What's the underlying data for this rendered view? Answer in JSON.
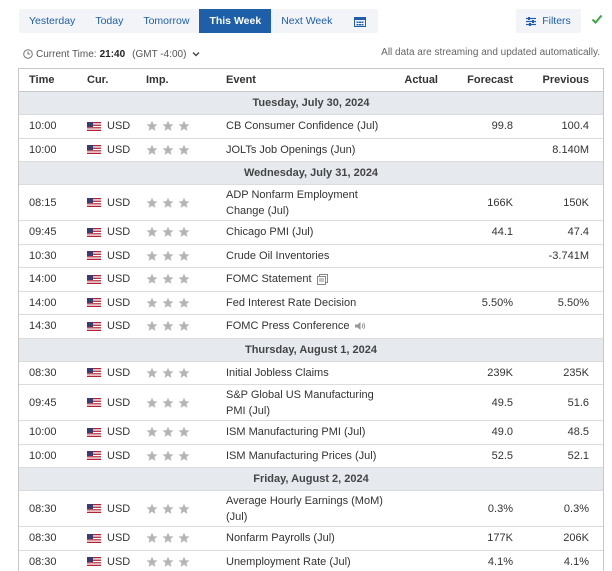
{
  "tabs": [
    {
      "label": "Yesterday",
      "active": false
    },
    {
      "label": "Today",
      "active": false
    },
    {
      "label": "Tomorrow",
      "active": false
    },
    {
      "label": "This Week",
      "active": true
    },
    {
      "label": "Next Week",
      "active": false
    }
  ],
  "calendar_icon": "calendar-icon",
  "filters": {
    "label": "Filters",
    "icon": "filters-icon"
  },
  "check_icon": "checkmark-icon",
  "time_info": {
    "label": "Current Time:",
    "time": "21:40",
    "timezone": "(GMT -4:00)",
    "dropdown_icon": "chevron-down-icon"
  },
  "streaming_note": "All data are streaming and updated automatically.",
  "columns": {
    "time": "Time",
    "currency": "Cur.",
    "importance": "Imp.",
    "event": "Event",
    "actual": "Actual",
    "forecast": "Forecast",
    "previous": "Previous"
  },
  "colors": {
    "accent": "#1f5fa9",
    "day_header_bg": "#e6eaef",
    "star_gray": "#b5b5b5",
    "check_green": "#3aa845"
  },
  "days": [
    {
      "date": "Tuesday, July 30, 2024",
      "events": [
        {
          "time": "10:00",
          "currency": "USD",
          "importance": 3,
          "event": "CB Consumer Confidence (Jul)",
          "actual": "",
          "forecast": "99.8",
          "previous": "100.4"
        },
        {
          "time": "10:00",
          "currency": "USD",
          "importance": 3,
          "event": "JOLTs Job Openings (Jun)",
          "actual": "",
          "forecast": "",
          "previous": "8.140M"
        }
      ]
    },
    {
      "date": "Wednesday, July 31, 2024",
      "events": [
        {
          "time": "08:15",
          "currency": "USD",
          "importance": 3,
          "event": "ADP Nonfarm Employment Change (Jul)",
          "actual": "",
          "forecast": "166K",
          "previous": "150K"
        },
        {
          "time": "09:45",
          "currency": "USD",
          "importance": 3,
          "event": "Chicago PMI (Jul)",
          "actual": "",
          "forecast": "44.1",
          "previous": "47.4"
        },
        {
          "time": "10:30",
          "currency": "USD",
          "importance": 3,
          "event": "Crude Oil Inventories",
          "actual": "",
          "forecast": "",
          "previous": "-3.741M"
        },
        {
          "time": "14:00",
          "currency": "USD",
          "importance": 3,
          "event": "FOMC Statement",
          "icon": "document-icon",
          "actual": "",
          "forecast": "",
          "previous": ""
        },
        {
          "time": "14:00",
          "currency": "USD",
          "importance": 3,
          "event": "Fed Interest Rate Decision",
          "actual": "",
          "forecast": "5.50%",
          "previous": "5.50%"
        },
        {
          "time": "14:30",
          "currency": "USD",
          "importance": 3,
          "event": "FOMC Press Conference",
          "icon": "speaker-icon",
          "actual": "",
          "forecast": "",
          "previous": ""
        }
      ]
    },
    {
      "date": "Thursday, August 1, 2024",
      "events": [
        {
          "time": "08:30",
          "currency": "USD",
          "importance": 3,
          "event": "Initial Jobless Claims",
          "actual": "",
          "forecast": "239K",
          "previous": "235K"
        },
        {
          "time": "09:45",
          "currency": "USD",
          "importance": 3,
          "event": "S&P Global US Manufacturing PMI (Jul)",
          "actual": "",
          "forecast": "49.5",
          "previous": "51.6"
        },
        {
          "time": "10:00",
          "currency": "USD",
          "importance": 3,
          "event": "ISM Manufacturing PMI (Jul)",
          "actual": "",
          "forecast": "49.0",
          "previous": "48.5"
        },
        {
          "time": "10:00",
          "currency": "USD",
          "importance": 3,
          "event": "ISM Manufacturing Prices (Jul)",
          "actual": "",
          "forecast": "52.5",
          "previous": "52.1"
        }
      ]
    },
    {
      "date": "Friday, August 2, 2024",
      "events": [
        {
          "time": "08:30",
          "currency": "USD",
          "importance": 3,
          "event": "Average Hourly Earnings (MoM) (Jul)",
          "actual": "",
          "forecast": "0.3%",
          "previous": "0.3%"
        },
        {
          "time": "08:30",
          "currency": "USD",
          "importance": 3,
          "event": "Nonfarm Payrolls (Jul)",
          "actual": "",
          "forecast": "177K",
          "previous": "206K"
        },
        {
          "time": "08:30",
          "currency": "USD",
          "importance": 3,
          "event": "Unemployment Rate (Jul)",
          "actual": "",
          "forecast": "4.1%",
          "previous": "4.1%"
        }
      ]
    }
  ]
}
